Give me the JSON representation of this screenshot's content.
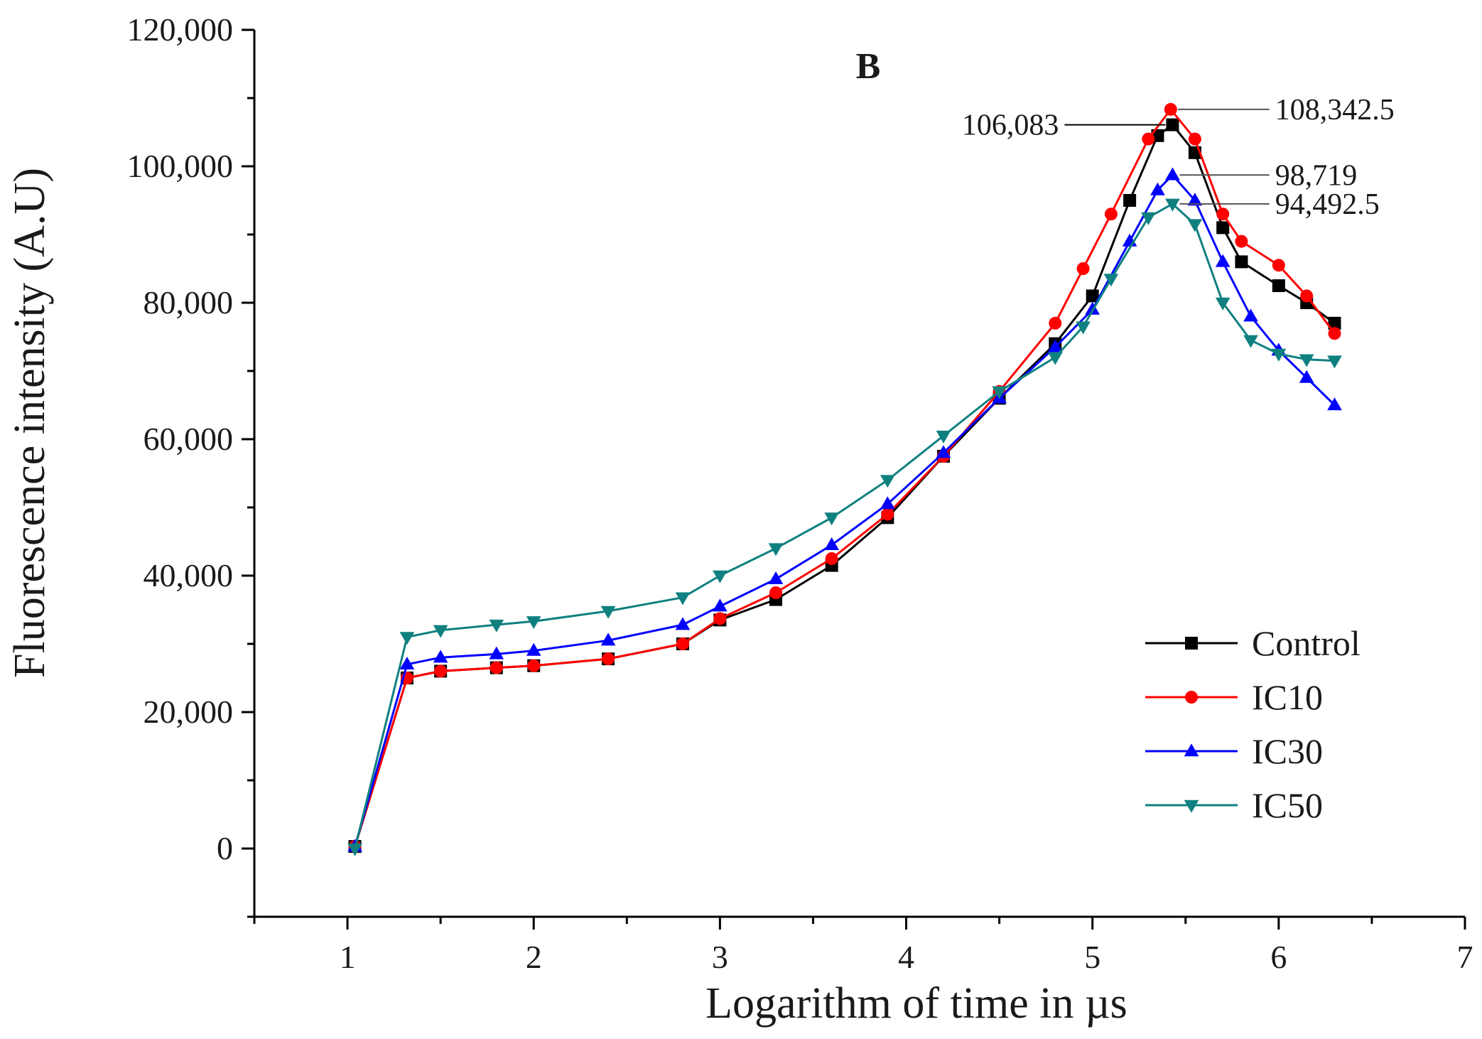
{
  "chart_data": {
    "type": "line",
    "title": "B",
    "xlabel": "Logarithm of time in µs",
    "ylabel": "Fluorescence intensity (A.U)",
    "xlim": [
      0.5,
      7
    ],
    "ylim": [
      -10000,
      120000
    ],
    "x_ticks": [
      1,
      2,
      3,
      4,
      5,
      6,
      7
    ],
    "x_tick_labels": [
      "1",
      "2",
      "3",
      "4",
      "5",
      "6",
      "7"
    ],
    "y_ticks": [
      0,
      20000,
      40000,
      60000,
      80000,
      100000,
      120000
    ],
    "y_tick_labels": [
      "0",
      "20,000",
      "40,000",
      "60,000",
      "80,000",
      "100,000",
      "120,000"
    ],
    "legend_position": "bottom-right",
    "series": [
      {
        "name": "Control",
        "color": "#000000",
        "marker": "square",
        "points": [
          [
            1.04,
            300
          ],
          [
            1.32,
            25000
          ],
          [
            1.5,
            26000
          ],
          [
            1.8,
            26500
          ],
          [
            2.0,
            26800
          ],
          [
            2.4,
            27800
          ],
          [
            2.8,
            30000
          ],
          [
            3.0,
            33500
          ],
          [
            3.3,
            36500
          ],
          [
            3.6,
            41500
          ],
          [
            3.9,
            48500
          ],
          [
            4.2,
            57500
          ],
          [
            4.5,
            66000
          ],
          [
            4.8,
            74000
          ],
          [
            5.0,
            81000
          ],
          [
            5.2,
            95000
          ],
          [
            5.35,
            104500
          ],
          [
            5.43,
            106083
          ],
          [
            5.55,
            102000
          ],
          [
            5.7,
            91000
          ],
          [
            5.8,
            86000
          ],
          [
            6.0,
            82500
          ],
          [
            6.15,
            80000
          ],
          [
            6.3,
            77000
          ]
        ]
      },
      {
        "name": "IC10",
        "color": "#ff0000",
        "marker": "circle",
        "points": [
          [
            1.04,
            300
          ],
          [
            1.32,
            25000
          ],
          [
            1.5,
            26000
          ],
          [
            1.8,
            26500
          ],
          [
            2.0,
            26800
          ],
          [
            2.4,
            27800
          ],
          [
            2.8,
            30000
          ],
          [
            3.0,
            33700
          ],
          [
            3.3,
            37500
          ],
          [
            3.6,
            42500
          ],
          [
            3.9,
            49000
          ],
          [
            4.2,
            57500
          ],
          [
            4.5,
            67000
          ],
          [
            4.8,
            77000
          ],
          [
            4.95,
            85000
          ],
          [
            5.1,
            93000
          ],
          [
            5.3,
            104000
          ],
          [
            5.42,
            108342.5
          ],
          [
            5.55,
            104000
          ],
          [
            5.7,
            93000
          ],
          [
            5.8,
            89000
          ],
          [
            6.0,
            85500
          ],
          [
            6.15,
            81000
          ],
          [
            6.3,
            75500
          ]
        ]
      },
      {
        "name": "IC30",
        "color": "#0000ff",
        "marker": "triangle-up",
        "points": [
          [
            1.04,
            300
          ],
          [
            1.32,
            27000
          ],
          [
            1.5,
            28000
          ],
          [
            1.8,
            28500
          ],
          [
            2.0,
            29000
          ],
          [
            2.4,
            30500
          ],
          [
            2.8,
            32800
          ],
          [
            3.0,
            35500
          ],
          [
            3.3,
            39500
          ],
          [
            3.6,
            44500
          ],
          [
            3.9,
            50500
          ],
          [
            4.2,
            58000
          ],
          [
            4.5,
            66000
          ],
          [
            4.8,
            73500
          ],
          [
            5.0,
            79000
          ],
          [
            5.2,
            89000
          ],
          [
            5.35,
            96500
          ],
          [
            5.43,
            98719
          ],
          [
            5.55,
            95000
          ],
          [
            5.7,
            86000
          ],
          [
            5.85,
            78000
          ],
          [
            6.0,
            73000
          ],
          [
            6.15,
            69000
          ],
          [
            6.3,
            65000
          ]
        ]
      },
      {
        "name": "IC50",
        "color": "#0f8080",
        "marker": "triangle-down",
        "points": [
          [
            1.04,
            0
          ],
          [
            1.32,
            31000
          ],
          [
            1.5,
            32000
          ],
          [
            1.8,
            32800
          ],
          [
            2.0,
            33300
          ],
          [
            2.4,
            34800
          ],
          [
            2.8,
            36800
          ],
          [
            3.0,
            40000
          ],
          [
            3.3,
            44000
          ],
          [
            3.6,
            48500
          ],
          [
            3.9,
            54000
          ],
          [
            4.2,
            60500
          ],
          [
            4.5,
            67000
          ],
          [
            4.8,
            72000
          ],
          [
            4.95,
            76500
          ],
          [
            5.1,
            83500
          ],
          [
            5.3,
            92500
          ],
          [
            5.43,
            94492.5
          ],
          [
            5.55,
            91500
          ],
          [
            5.7,
            80000
          ],
          [
            5.85,
            74500
          ],
          [
            6.0,
            72500
          ],
          [
            6.15,
            71700
          ],
          [
            6.3,
            71500
          ]
        ]
      }
    ],
    "annotations": [
      {
        "text": "108,342.5",
        "x": 5.42,
        "y": 108342.5,
        "side": "right"
      },
      {
        "text": "106,083",
        "x": 5.43,
        "y": 106083,
        "side": "left"
      },
      {
        "text": "98,719",
        "x": 5.43,
        "y": 98719,
        "side": "right"
      },
      {
        "text": "94,492.5",
        "x": 5.43,
        "y": 94492.5,
        "side": "right"
      }
    ]
  }
}
